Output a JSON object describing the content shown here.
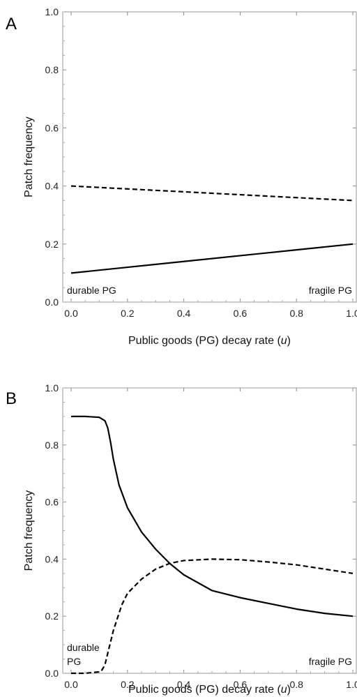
{
  "chart_data": [
    {
      "type": "line",
      "panel": "A",
      "xlabel_main": "Public goods (PG) decay rate (",
      "xlabel_var": "u",
      "xlabel_end": ")",
      "ylabel": "Patch frequency",
      "xlim": [
        0,
        1
      ],
      "ylim": [
        0,
        1
      ],
      "x_ticks": [
        "0.0",
        "0.2",
        "0.4",
        "0.6",
        "0.8",
        "1.0"
      ],
      "y_ticks": [
        "0.0",
        "0.2",
        "0.4",
        "0.6",
        "0.8",
        "1.0"
      ],
      "annotations": {
        "left": [
          "durable PG"
        ],
        "right": "fragile PG"
      },
      "series": [
        {
          "style": "solid",
          "x": [
            0,
            0.2,
            0.4,
            0.6,
            0.8,
            1.0
          ],
          "y": [
            0.1,
            0.12,
            0.14,
            0.16,
            0.18,
            0.2
          ]
        },
        {
          "style": "dashed",
          "x": [
            0,
            0.2,
            0.4,
            0.6,
            0.8,
            1.0
          ],
          "y": [
            0.4,
            0.39,
            0.38,
            0.37,
            0.36,
            0.35
          ]
        }
      ]
    },
    {
      "type": "line",
      "panel": "B",
      "xlabel_main": "Public goods (PG) decay rate (",
      "xlabel_var": "u",
      "xlabel_end": ")",
      "ylabel": "Patch frequency",
      "xlim": [
        0,
        1
      ],
      "ylim": [
        0,
        1
      ],
      "x_ticks": [
        "0.0",
        "0.2",
        "0.4",
        "0.6",
        "0.8",
        "1.0"
      ],
      "y_ticks": [
        "0.0",
        "0.2",
        "0.4",
        "0.6",
        "0.8",
        "1.0"
      ],
      "annotations": {
        "left": [
          "durable",
          "PG"
        ],
        "right": "fragile PG"
      },
      "series": [
        {
          "style": "solid",
          "x": [
            0,
            0.05,
            0.1,
            0.12,
            0.13,
            0.14,
            0.15,
            0.17,
            0.2,
            0.25,
            0.3,
            0.35,
            0.4,
            0.5,
            0.6,
            0.7,
            0.8,
            0.9,
            1.0
          ],
          "y": [
            0.9,
            0.9,
            0.897,
            0.885,
            0.86,
            0.81,
            0.75,
            0.66,
            0.58,
            0.495,
            0.435,
            0.385,
            0.345,
            0.29,
            0.265,
            0.245,
            0.225,
            0.21,
            0.2
          ]
        },
        {
          "style": "dashed",
          "x": [
            0,
            0.05,
            0.1,
            0.11,
            0.12,
            0.13,
            0.15,
            0.18,
            0.2,
            0.25,
            0.3,
            0.35,
            0.4,
            0.5,
            0.6,
            0.7,
            0.8,
            0.9,
            1.0
          ],
          "y": [
            0.0,
            0.0,
            0.005,
            0.012,
            0.03,
            0.07,
            0.15,
            0.24,
            0.28,
            0.33,
            0.365,
            0.385,
            0.395,
            0.4,
            0.398,
            0.39,
            0.38,
            0.365,
            0.35
          ]
        }
      ]
    }
  ]
}
